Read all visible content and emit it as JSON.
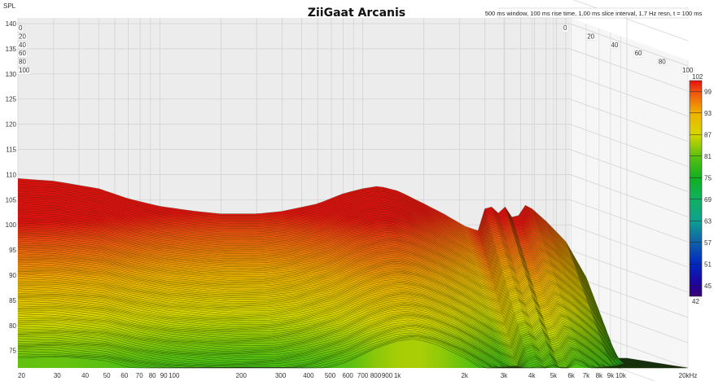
{
  "chart_data": {
    "type": "waterfall",
    "title": "ZiiGaat Arcanis",
    "subtitle": "500 ms window, 100 ms rise time, 1,00 ms slice interval, 1,7 Hz resn, t = 100 ms",
    "ylabel": "SPL",
    "ylim": [
      72,
      142
    ],
    "y_ticks": [
      "140",
      "135",
      "130",
      "125",
      "120",
      "115",
      "110",
      "105",
      "100",
      "95",
      "90",
      "85",
      "80",
      "75"
    ],
    "x_ticks": [
      {
        "f": 20,
        "label": "20"
      },
      {
        "f": 30,
        "label": "30"
      },
      {
        "f": 40,
        "label": "40"
      },
      {
        "f": 50,
        "label": "50"
      },
      {
        "f": 60,
        "label": "60"
      },
      {
        "f": 70,
        "label": "70"
      },
      {
        "f": 80,
        "label": "80"
      },
      {
        "f": 90,
        "label": "90"
      },
      {
        "f": 100,
        "label": "100"
      },
      {
        "f": 200,
        "label": "200"
      },
      {
        "f": 300,
        "label": "300"
      },
      {
        "f": 400,
        "label": "400"
      },
      {
        "f": 500,
        "label": "500"
      },
      {
        "f": 600,
        "label": "600"
      },
      {
        "f": 700,
        "label": "700"
      },
      {
        "f": 800,
        "label": "800"
      },
      {
        "f": 900,
        "label": "900"
      },
      {
        "f": 1000,
        "label": "1k"
      },
      {
        "f": 2000,
        "label": "2k"
      },
      {
        "f": 3000,
        "label": "3k"
      },
      {
        "f": 4000,
        "label": "4k"
      },
      {
        "f": 5000,
        "label": "5k"
      },
      {
        "f": 6000,
        "label": "6k"
      },
      {
        "f": 7000,
        "label": "7k"
      },
      {
        "f": 8000,
        "label": "8k"
      },
      {
        "f": 9000,
        "label": "9k"
      },
      {
        "f": 10000,
        "label": "10k"
      },
      {
        "f": 20000,
        "label": "20kHz"
      }
    ],
    "xlim": [
      20,
      20000
    ],
    "time_ticks_ms": [
      "0",
      "20",
      "40",
      "60",
      "80",
      "100"
    ],
    "time_range_ms": [
      0,
      100
    ],
    "slices": 100,
    "response_t0": {
      "freq_hz": [
        20,
        30,
        50,
        70,
        100,
        150,
        200,
        300,
        400,
        600,
        800,
        1000,
        1200,
        1500,
        2000,
        2500,
        3200,
        3800,
        4100,
        4500,
        5000,
        5600,
        6400,
        8000,
        10000,
        13000,
        16000,
        20000
      ],
      "spl_db": [
        108.5,
        108,
        106.5,
        104.5,
        103,
        102,
        101.5,
        101.5,
        102,
        103.5,
        105.5,
        106.5,
        107,
        106,
        103.5,
        101.5,
        99,
        98,
        105,
        101,
        103,
        100,
        103.5,
        100,
        96,
        88,
        70,
        60
      ]
    },
    "decay_db_at_100ms": {
      "freq_hz": [
        20,
        100,
        300,
        1000,
        2000,
        4000,
        10000,
        20000
      ],
      "db": [
        27,
        25,
        24,
        22,
        22,
        24,
        22,
        20
      ]
    },
    "colorbar": {
      "range": [
        42,
        102
      ],
      "ticks": [
        "102",
        "99",
        "93",
        "87",
        "81",
        "75",
        "69",
        "63",
        "57",
        "51",
        "45",
        "42"
      ],
      "stops": [
        {
          "v": 42,
          "c": "#3a0070"
        },
        {
          "v": 45,
          "c": "#22009a"
        },
        {
          "v": 51,
          "c": "#0028c0"
        },
        {
          "v": 57,
          "c": "#1060a8"
        },
        {
          "v": 63,
          "c": "#10a090"
        },
        {
          "v": 69,
          "c": "#10b060"
        },
        {
          "v": 75,
          "c": "#10b020"
        },
        {
          "v": 81,
          "c": "#5cc010"
        },
        {
          "v": 87,
          "c": "#d6d600"
        },
        {
          "v": 93,
          "c": "#f0b000"
        },
        {
          "v": 99,
          "c": "#f05010"
        },
        {
          "v": 102,
          "c": "#e81010"
        }
      ]
    }
  }
}
